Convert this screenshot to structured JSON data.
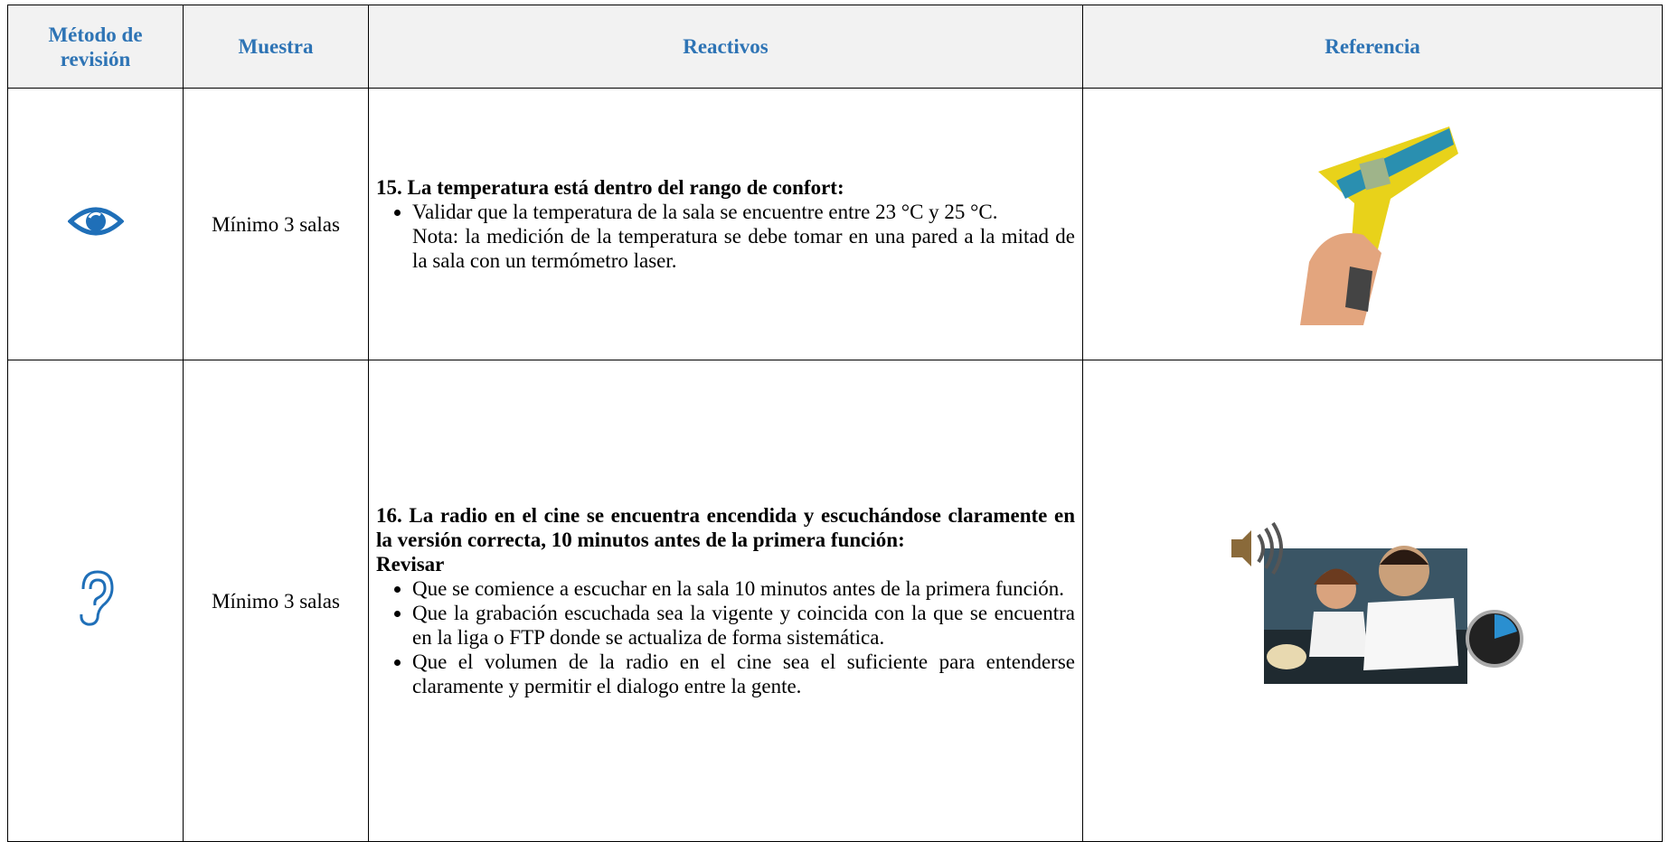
{
  "table": {
    "header": [
      "Método de revisión",
      "Muestra",
      "Reactivos",
      "Referencia"
    ],
    "rows": [
      {
        "sample": "Mínimo 3 salas",
        "title": "15. La temperatura está dentro del rango de confort:",
        "bullets": [
          {
            "text": "Validar que la temperatura de la sala se encuentre entre 23 °C y 25 °C.",
            "note": "Nota: la medición de la temperatura se debe tomar en una pared a la mitad de la sala con un termómetro laser."
          }
        ]
      },
      {
        "sample": "Mínimo 3 salas",
        "title": "16. La radio en el cine se encuentra encendida y escuchándose claramente en la versión correcta, 10 minutos antes de la primera función:",
        "subtitle": "Revisar",
        "bullets": [
          {
            "text": "Que se comience a escuchar en la sala 10 minutos antes de la primera función."
          },
          {
            "text": "Que la grabación escuchada sea la vigente y coincida con la que se encuentra en la liga o FTP donde se actualiza de forma sistemática."
          },
          {
            "text": "Que el volumen de la radio en el cine sea el suficiente para entenderse claramente y permitir el dialogo entre la gente."
          }
        ]
      }
    ]
  }
}
